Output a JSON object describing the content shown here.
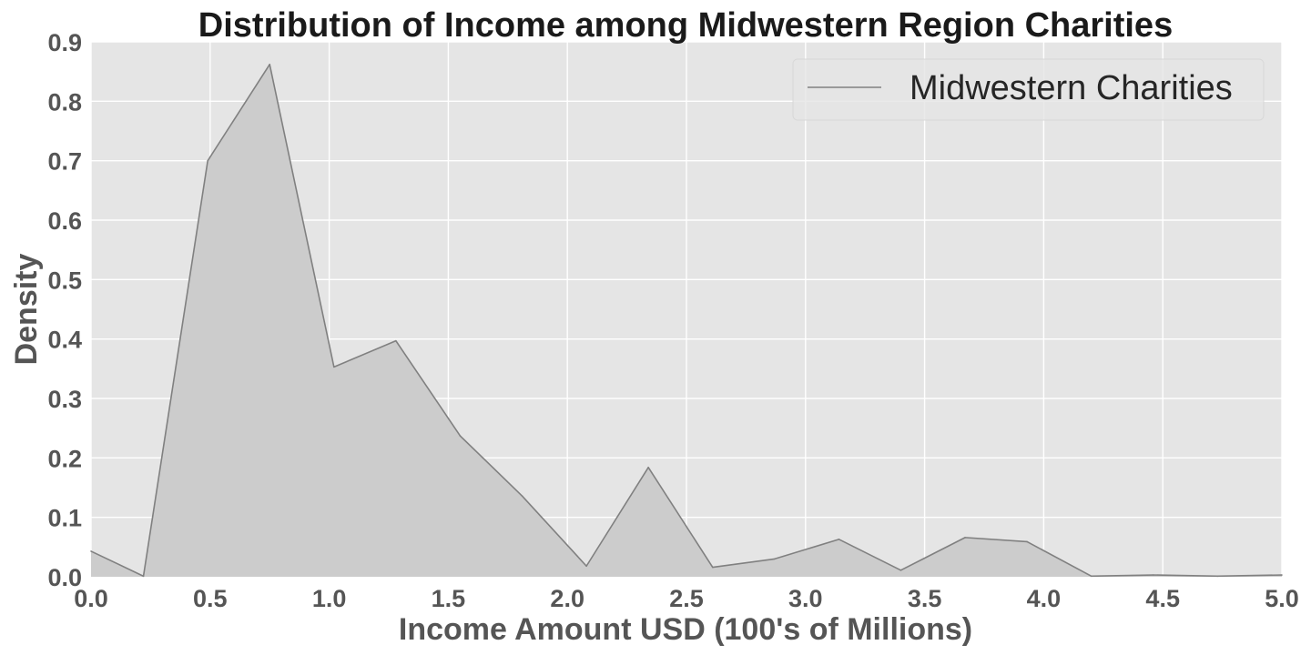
{
  "chart_data": {
    "type": "area",
    "title": "Distribution of Income among Midwestern Region Charities",
    "xlabel": "Income Amount USD (100's of Millions)",
    "ylabel": "Density",
    "xlim": [
      0.0,
      5.0
    ],
    "ylim": [
      0.0,
      0.9
    ],
    "xticks": [
      "0.0",
      "0.5",
      "1.0",
      "1.5",
      "2.0",
      "2.5",
      "3.0",
      "3.5",
      "4.0",
      "4.5",
      "5.0"
    ],
    "yticks": [
      "0.0",
      "0.1",
      "0.2",
      "0.3",
      "0.4",
      "0.5",
      "0.6",
      "0.7",
      "0.8",
      "0.9"
    ],
    "grid": true,
    "legend_position": "top-right",
    "series": [
      {
        "name": "Midwestern Charities",
        "color": "#808080",
        "fill_color": "#cccccc",
        "x": [
          0.0,
          0.22,
          0.49,
          0.75,
          1.02,
          1.28,
          1.55,
          1.81,
          2.08,
          2.34,
          2.61,
          2.87,
          3.14,
          3.4,
          3.67,
          3.93,
          4.2,
          4.46,
          4.73,
          5.0
        ],
        "y": [
          0.043,
          0.001,
          0.7,
          0.862,
          0.353,
          0.397,
          0.237,
          0.136,
          0.018,
          0.184,
          0.016,
          0.03,
          0.063,
          0.011,
          0.066,
          0.059,
          0.001,
          0.003,
          0.001,
          0.003
        ]
      }
    ]
  }
}
